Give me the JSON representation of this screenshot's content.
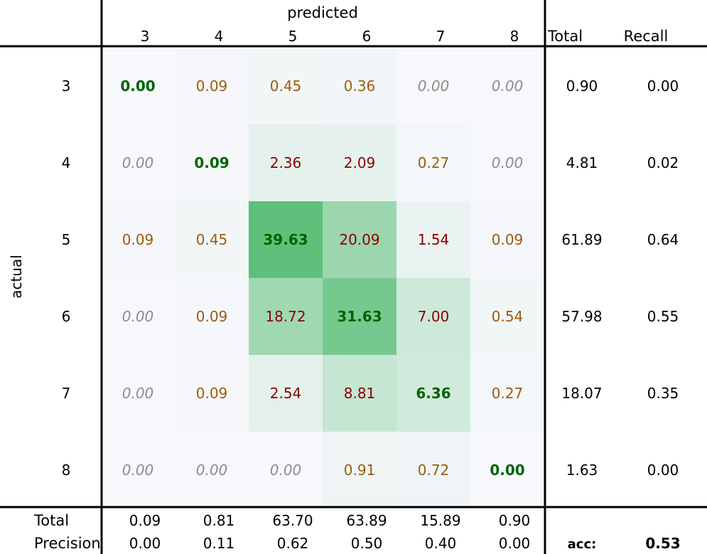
{
  "chart_data": {
    "type": "heatmap",
    "title": "",
    "xlabel": "predicted",
    "ylabel": "actual",
    "x_categories": [
      "3",
      "4",
      "5",
      "6",
      "7",
      "8"
    ],
    "y_categories": [
      "3",
      "4",
      "5",
      "6",
      "7",
      "8"
    ],
    "values": [
      [
        "0.00",
        "0.09",
        "0.45",
        "0.36",
        "0.00",
        "0.00"
      ],
      [
        "0.00",
        "0.09",
        "2.36",
        "2.09",
        "0.27",
        "0.00"
      ],
      [
        "0.09",
        "0.45",
        "39.63",
        "20.09",
        "1.54",
        "0.09"
      ],
      [
        "0.00",
        "0.09",
        "18.72",
        "31.63",
        "7.00",
        "0.54"
      ],
      [
        "0.00",
        "0.09",
        "2.54",
        "8.81",
        "6.36",
        "0.27"
      ],
      [
        "0.00",
        "0.00",
        "0.00",
        "0.91",
        "0.72",
        "0.00"
      ]
    ],
    "row_total_label": "Total",
    "recall_label": "Recall",
    "row_totals": [
      "0.90",
      "4.81",
      "61.89",
      "57.98",
      "18.07",
      "1.63"
    ],
    "recall": [
      "0.00",
      "0.02",
      "0.64",
      "0.55",
      "0.35",
      "0.00"
    ],
    "col_total_label": "Total",
    "precision_label": "Precision",
    "col_totals": [
      "0.09",
      "0.81",
      "63.70",
      "63.89",
      "15.89",
      "0.90"
    ],
    "precision": [
      "0.00",
      "0.11",
      "0.62",
      "0.50",
      "0.40",
      "0.00"
    ],
    "accuracy_label": "acc:",
    "accuracy": "0.53",
    "colors": {
      "diagonal_text": "#006400",
      "large_offdiag_text": "#8b0000",
      "small_offdiag_text": "#9c5b0f",
      "zero_offdiag_text": "#8c8c8c",
      "cell_base": "#f7f8fc",
      "heat_max": "#5ec07a"
    }
  }
}
